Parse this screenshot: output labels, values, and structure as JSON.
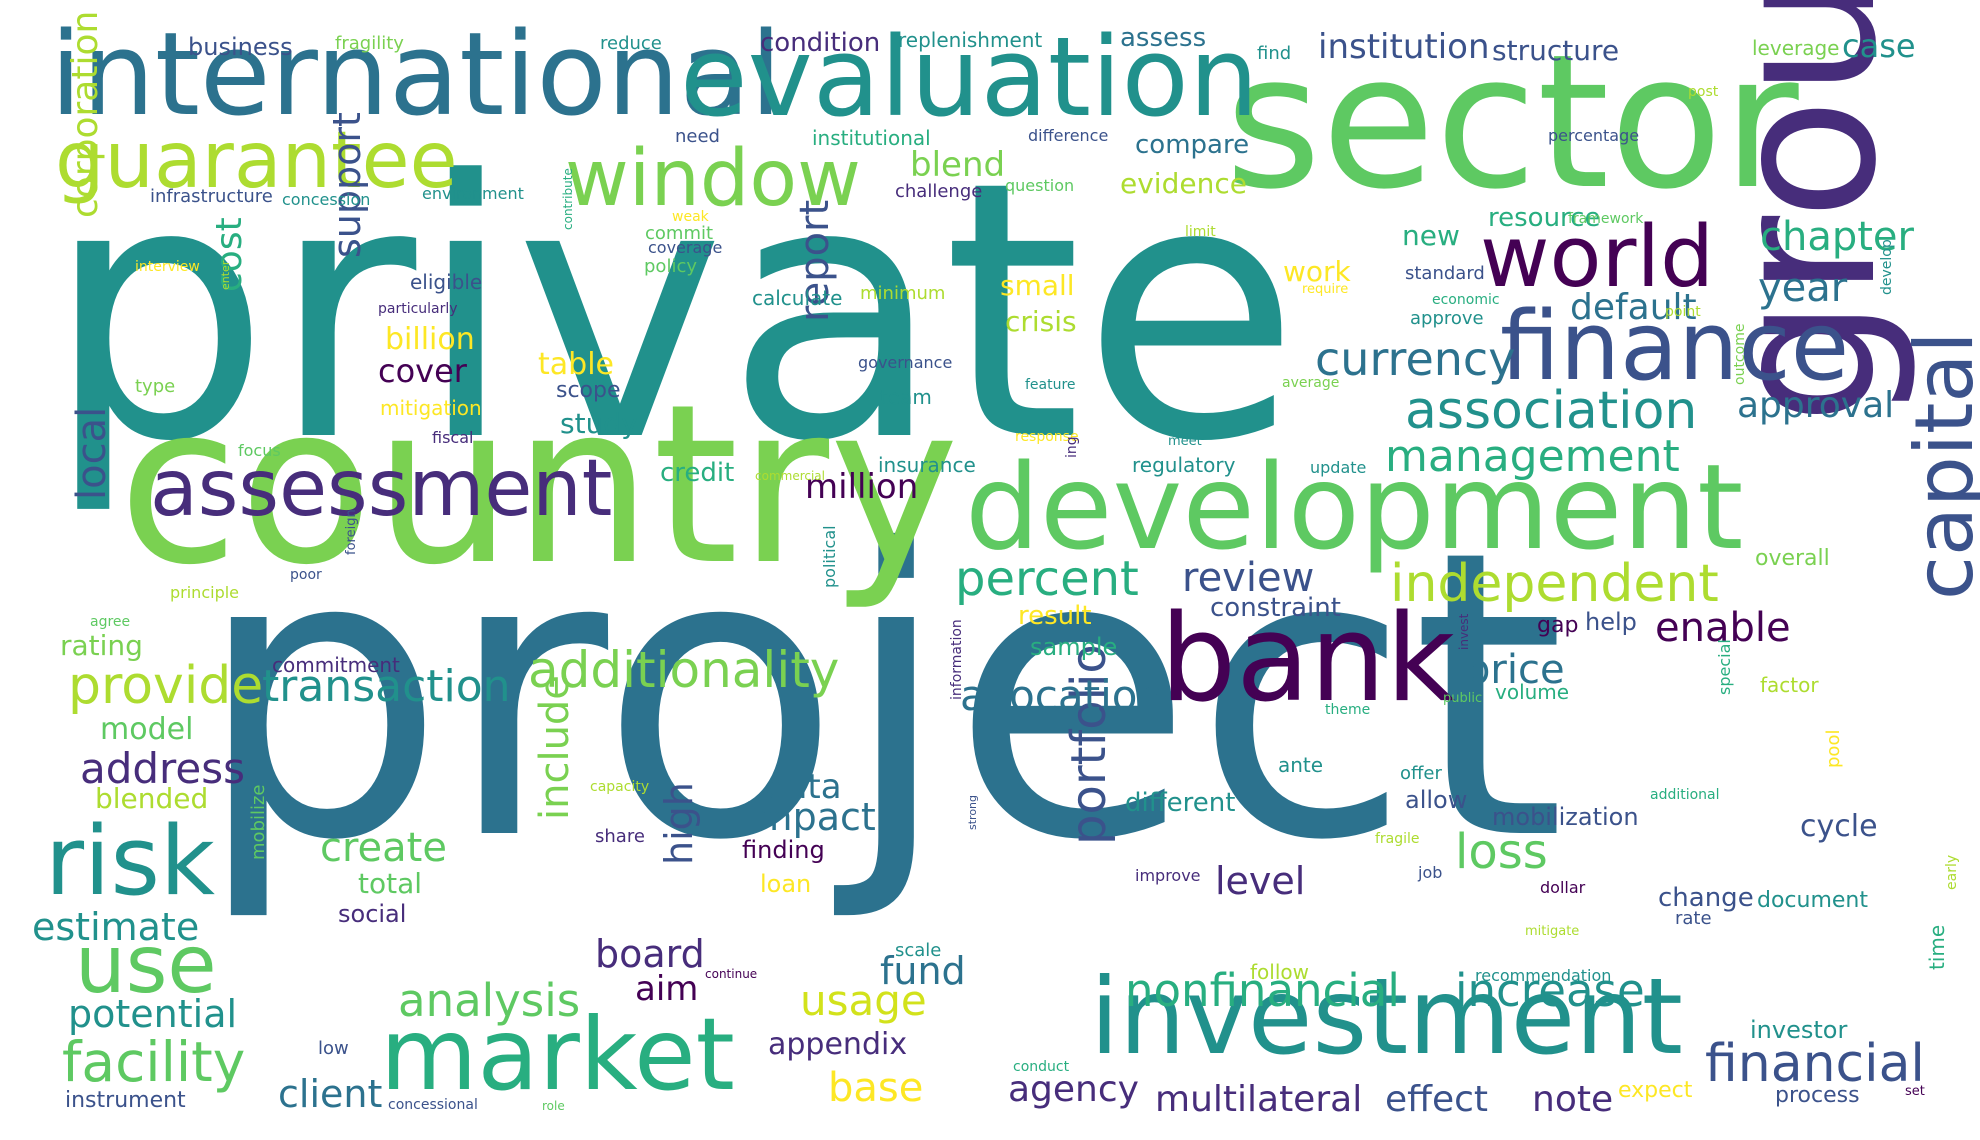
{
  "word_cloud": {
    "palette": [
      "#440154",
      "#472d7b",
      "#3b528b",
      "#2c728e",
      "#21918c",
      "#28ae80",
      "#5ec962",
      "#addc30",
      "#fde725"
    ],
    "words": [
      {
        "text": "private",
        "color": "#21918c"
      },
      {
        "text": "project",
        "color": "#2c728e"
      },
      {
        "text": "sector",
        "color": "#5ec962"
      },
      {
        "text": "country",
        "color": "#7ad151"
      },
      {
        "text": "international",
        "color": "#2c728e"
      },
      {
        "text": "evaluation",
        "color": "#21918c"
      },
      {
        "text": "group",
        "color": "#472d7b"
      },
      {
        "text": "development",
        "color": "#5ec962"
      },
      {
        "text": "investment",
        "color": "#21918c"
      },
      {
        "text": "bank",
        "color": "#440154"
      },
      {
        "text": "market",
        "color": "#28ae80"
      },
      {
        "text": "assessment",
        "color": "#472d7b"
      },
      {
        "text": "guarantee",
        "color": "#addc30"
      },
      {
        "text": "window",
        "color": "#7ad151"
      },
      {
        "text": "world",
        "color": "#440154"
      },
      {
        "text": "finance",
        "color": "#3b528b"
      },
      {
        "text": "risk",
        "color": "#21918c"
      },
      {
        "text": "capital",
        "color": "#3b528b"
      },
      {
        "text": "use",
        "color": "#5ec962"
      },
      {
        "text": "association",
        "color": "#21918c"
      },
      {
        "text": "independent",
        "color": "#addc30"
      },
      {
        "text": "additionality",
        "color": "#7ad151"
      },
      {
        "text": "provide",
        "color": "#addc30"
      },
      {
        "text": "transaction",
        "color": "#21918c"
      },
      {
        "text": "facility",
        "color": "#5ec962"
      },
      {
        "text": "financial",
        "color": "#3b528b"
      },
      {
        "text": "nonfinancial",
        "color": "#28ae80"
      },
      {
        "text": "increase",
        "color": "#21918c"
      },
      {
        "text": "analysis",
        "color": "#5ec962"
      },
      {
        "text": "portfolio",
        "color": "#3b528b"
      },
      {
        "text": "currency",
        "color": "#2c728e"
      },
      {
        "text": "management",
        "color": "#28ae80"
      },
      {
        "text": "percent",
        "color": "#28ae80"
      },
      {
        "text": "concessionality",
        "color": "#28ae80"
      },
      {
        "text": "allocation",
        "color": "#2c728e"
      },
      {
        "text": "loss",
        "color": "#5ec962"
      },
      {
        "text": "include",
        "color": "#7ad151"
      },
      {
        "text": "support",
        "color": "#3b528b"
      },
      {
        "text": "report",
        "color": "#3b528b"
      },
      {
        "text": "chapter",
        "color": "#28ae80"
      },
      {
        "text": "address",
        "color": "#472d7b"
      },
      {
        "text": "create",
        "color": "#5ec962"
      },
      {
        "text": "impact",
        "color": "#2c728e"
      },
      {
        "text": "usage",
        "color": "#d2e21b"
      },
      {
        "text": "fund",
        "color": "#2c728e"
      },
      {
        "text": "high",
        "color": "#3b528b"
      },
      {
        "text": "board",
        "color": "#472d7b"
      },
      {
        "text": "enable",
        "color": "#440154"
      },
      {
        "text": "price",
        "color": "#2c728e"
      },
      {
        "text": "review",
        "color": "#3b528b"
      },
      {
        "text": "year",
        "color": "#2c728e"
      },
      {
        "text": "default",
        "color": "#2c728e"
      },
      {
        "text": "approval",
        "color": "#2c728e"
      },
      {
        "text": "corporation",
        "color": "#addc30"
      },
      {
        "text": "local",
        "color": "#3b528b"
      },
      {
        "text": "potential",
        "color": "#21918c"
      },
      {
        "text": "estimate",
        "color": "#21918c"
      },
      {
        "text": "client",
        "color": "#2c728e"
      },
      {
        "text": "agency",
        "color": "#472d7b"
      },
      {
        "text": "multilateral",
        "color": "#472d7b"
      },
      {
        "text": "effect",
        "color": "#3b528b"
      },
      {
        "text": "note",
        "color": "#472d7b"
      },
      {
        "text": "base",
        "color": "#fde725"
      },
      {
        "text": "level",
        "color": "#472d7b"
      },
      {
        "text": "blend",
        "color": "#7ad151"
      },
      {
        "text": "million",
        "color": "#440154"
      },
      {
        "text": "cost",
        "color": "#28ae80"
      },
      {
        "text": "data",
        "color": "#2c728e"
      },
      {
        "text": "blended",
        "color": "#addc30"
      },
      {
        "text": "model",
        "color": "#5ec962"
      },
      {
        "text": "total",
        "color": "#5ec962"
      },
      {
        "text": "cover",
        "color": "#440154"
      },
      {
        "text": "billion",
        "color": "#fde725"
      },
      {
        "text": "table",
        "color": "#fde725"
      },
      {
        "text": "study",
        "color": "#21918c"
      },
      {
        "text": "crisis",
        "color": "#addc30"
      },
      {
        "text": "small",
        "color": "#fde725"
      },
      {
        "text": "evidence",
        "color": "#addc30"
      },
      {
        "text": "compare",
        "color": "#2c728e"
      },
      {
        "text": "institution",
        "color": "#3b528b"
      },
      {
        "text": "structure",
        "color": "#3b528b"
      },
      {
        "text": "case",
        "color": "#21918c"
      },
      {
        "text": "new",
        "color": "#28ae80"
      },
      {
        "text": "resource",
        "color": "#28ae80"
      },
      {
        "text": "work",
        "color": "#fde725"
      },
      {
        "text": "constraint",
        "color": "#3b528b"
      },
      {
        "text": "result",
        "color": "#fde725"
      },
      {
        "text": "sample",
        "color": "#28ae80"
      },
      {
        "text": "credit",
        "color": "#28ae80"
      },
      {
        "text": "aim",
        "color": "#440154"
      },
      {
        "text": "appendix",
        "color": "#472d7b"
      },
      {
        "text": "rating",
        "color": "#7ad151"
      },
      {
        "text": "condition",
        "color": "#472d7b"
      },
      {
        "text": "business",
        "color": "#3b528b"
      },
      {
        "text": "different",
        "color": "#21918c"
      },
      {
        "text": "mobilization",
        "color": "#3b528b"
      },
      {
        "text": "cycle",
        "color": "#3b528b"
      },
      {
        "text": "change",
        "color": "#3b528b"
      },
      {
        "text": "document",
        "color": "#21918c"
      },
      {
        "text": "investor",
        "color": "#21918c"
      },
      {
        "text": "process",
        "color": "#3b528b"
      },
      {
        "text": "expect",
        "color": "#fde725"
      },
      {
        "text": "help",
        "color": "#3b528b"
      },
      {
        "text": "gap",
        "color": "#440154"
      },
      {
        "text": "volume",
        "color": "#28ae80"
      },
      {
        "text": "social",
        "color": "#472d7b"
      },
      {
        "text": "finding",
        "color": "#440154"
      },
      {
        "text": "loan",
        "color": "#fde725"
      },
      {
        "text": "allow",
        "color": "#3b528b"
      },
      {
        "text": "offer",
        "color": "#21918c"
      },
      {
        "text": "overall",
        "color": "#7ad151"
      },
      {
        "text": "factor",
        "color": "#addc30"
      },
      {
        "text": "leverage",
        "color": "#7ad151"
      },
      {
        "text": "assess",
        "color": "#2c728e"
      },
      {
        "text": "replenishment",
        "color": "#21918c"
      },
      {
        "text": "reduce",
        "color": "#21918c"
      },
      {
        "text": "fragility",
        "color": "#7ad151"
      },
      {
        "text": "find",
        "color": "#21918c"
      },
      {
        "text": "calculate",
        "color": "#21918c"
      },
      {
        "text": "minimum",
        "color": "#addc30"
      },
      {
        "text": "team",
        "color": "#21918c"
      },
      {
        "text": "eligible",
        "color": "#3b528b"
      },
      {
        "text": "mitigation",
        "color": "#fde725"
      },
      {
        "text": "scope",
        "color": "#3b528b"
      },
      {
        "text": "policy",
        "color": "#5ec962"
      },
      {
        "text": "commit",
        "color": "#5ec962"
      },
      {
        "text": "regulatory",
        "color": "#21918c"
      },
      {
        "text": "insurance",
        "color": "#21918c"
      },
      {
        "text": "commitment",
        "color": "#472d7b"
      },
      {
        "text": "challenge",
        "color": "#472d7b"
      },
      {
        "text": "need",
        "color": "#3b528b"
      },
      {
        "text": "institutional",
        "color": "#28ae80"
      },
      {
        "text": "standard",
        "color": "#3b528b"
      },
      {
        "text": "approve",
        "color": "#21918c"
      },
      {
        "text": "infrastructure",
        "color": "#3b528b"
      },
      {
        "text": "concession",
        "color": "#21918c"
      },
      {
        "text": "environment",
        "color": "#21918c"
      },
      {
        "text": "question",
        "color": "#5ec962"
      },
      {
        "text": "difference",
        "color": "#3b528b"
      },
      {
        "text": "percentage",
        "color": "#3b528b"
      },
      {
        "text": "post",
        "color": "#addc30"
      },
      {
        "text": "framework",
        "color": "#5ec962"
      },
      {
        "text": "economic",
        "color": "#28ae80"
      },
      {
        "text": "point",
        "color": "#addc30"
      },
      {
        "text": "require",
        "color": "#fde725"
      },
      {
        "text": "average",
        "color": "#7ad151"
      },
      {
        "text": "feature",
        "color": "#21918c"
      },
      {
        "text": "governance",
        "color": "#3b528b"
      },
      {
        "text": "limit",
        "color": "#addc30"
      },
      {
        "text": "weak",
        "color": "#fde725"
      },
      {
        "text": "coverage",
        "color": "#3b528b"
      },
      {
        "text": "interview",
        "color": "#fde725"
      },
      {
        "text": "particularly",
        "color": "#472d7b"
      },
      {
        "text": "type",
        "color": "#7ad151"
      },
      {
        "text": "focus",
        "color": "#5ec962"
      },
      {
        "text": "fiscal",
        "color": "#472d7b"
      },
      {
        "text": "response",
        "color": "#fde725"
      },
      {
        "text": "meet",
        "color": "#21918c"
      },
      {
        "text": "update",
        "color": "#21918c"
      },
      {
        "text": "commercial",
        "color": "#addc30"
      },
      {
        "text": "principle",
        "color": "#addc30"
      },
      {
        "text": "poor",
        "color": "#3b528b"
      },
      {
        "text": "agree",
        "color": "#5ec962"
      },
      {
        "text": "capacity",
        "color": "#addc30"
      },
      {
        "text": "share",
        "color": "#472d7b"
      },
      {
        "text": "improve",
        "color": "#472d7b"
      },
      {
        "text": "continue",
        "color": "#440154"
      },
      {
        "text": "scale",
        "color": "#21918c"
      },
      {
        "text": "recommendation",
        "color": "#21918c"
      },
      {
        "text": "follow",
        "color": "#addc30"
      },
      {
        "text": "conduct",
        "color": "#28ae80"
      },
      {
        "text": "low",
        "color": "#3b528b"
      },
      {
        "text": "instrument",
        "color": "#3b528b"
      },
      {
        "text": "concessional",
        "color": "#3b528b"
      },
      {
        "text": "role",
        "color": "#5ec962"
      },
      {
        "text": "theme",
        "color": "#28ae80"
      },
      {
        "text": "public",
        "color": "#5ec962"
      },
      {
        "text": "ante",
        "color": "#21918c"
      },
      {
        "text": "additional",
        "color": "#28ae80"
      },
      {
        "text": "fragile",
        "color": "#addc30"
      },
      {
        "text": "job",
        "color": "#3b528b"
      },
      {
        "text": "dollar",
        "color": "#440154"
      },
      {
        "text": "mitigate",
        "color": "#addc30"
      },
      {
        "text": "rate",
        "color": "#3b528b"
      },
      {
        "text": "set",
        "color": "#440154"
      },
      {
        "text": "time",
        "color": "#28ae80"
      },
      {
        "text": "early",
        "color": "#addc30"
      },
      {
        "text": "pool",
        "color": "#fde725"
      },
      {
        "text": "special",
        "color": "#28ae80"
      },
      {
        "text": "invest",
        "color": "#472d7b"
      },
      {
        "text": "information",
        "color": "#472d7b"
      },
      {
        "text": "political",
        "color": "#21918c"
      },
      {
        "text": "strong",
        "color": "#3b528b"
      },
      {
        "text": "mobilize",
        "color": "#5ec962"
      },
      {
        "text": "foreign",
        "color": "#3b528b"
      },
      {
        "text": "contribute",
        "color": "#28ae80"
      },
      {
        "text": "enter",
        "color": "#addc30"
      },
      {
        "text": "ing",
        "color": "#472d7b"
      },
      {
        "text": "outcome",
        "color": "#7ad151"
      },
      {
        "text": "develop",
        "color": "#21918c"
      }
    ]
  }
}
